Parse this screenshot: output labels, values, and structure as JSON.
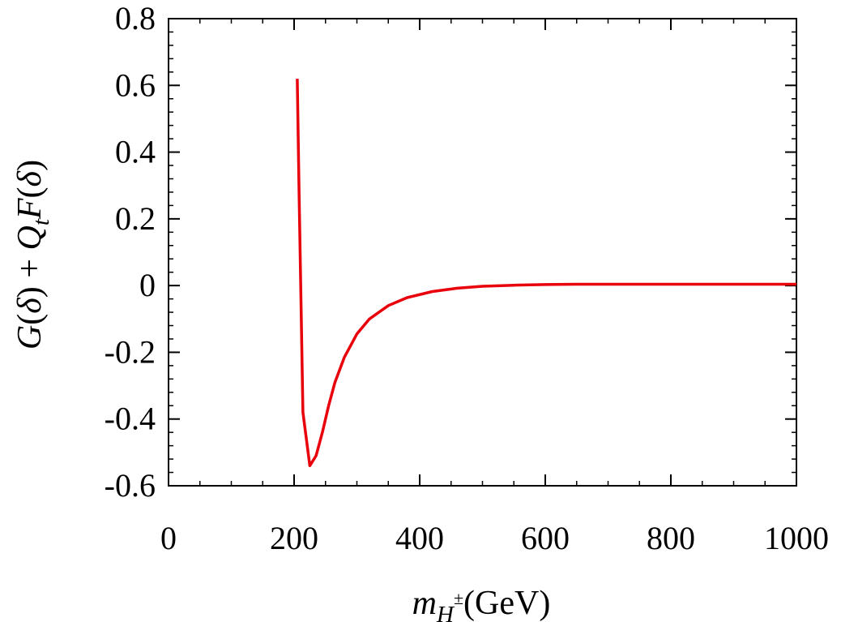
{
  "chart_data": {
    "type": "line",
    "title": "",
    "xlabel": {
      "symbol": "m",
      "subscript": "H",
      "superscript": "±",
      "unit": "(GeV)"
    },
    "ylabel": {
      "parts": [
        {
          "text": "G",
          "italic": true
        },
        {
          "text": "(",
          "italic": false
        },
        {
          "text": "δ",
          "italic": true
        },
        {
          "text": ") + ",
          "italic": false
        },
        {
          "text": "Q",
          "italic": true
        },
        {
          "text": "t",
          "italic": true,
          "sub": true
        },
        {
          "text": "F",
          "italic": true
        },
        {
          "text": "(",
          "italic": false
        },
        {
          "text": "δ",
          "italic": true
        },
        {
          "text": ")",
          "italic": false
        }
      ]
    },
    "xlim": [
      0,
      1000
    ],
    "ylim": [
      -0.6,
      0.8
    ],
    "xticks": [
      0,
      200,
      400,
      600,
      800,
      1000
    ],
    "xtick_labels": [
      "0",
      "200",
      "400",
      "600",
      "800",
      "1000"
    ],
    "yticks": [
      -0.6,
      -0.4,
      -0.2,
      0,
      0.2,
      0.4,
      0.6,
      0.8
    ],
    "ytick_labels": [
      "-0.6",
      "-0.4",
      "-0.2",
      "0",
      "0.2",
      "0.4",
      "0.6",
      "0.8"
    ],
    "x_minor_step": 50,
    "y_minor_step": 0.04,
    "grid": false,
    "legend": "none",
    "series": [
      {
        "color": "#e8000b",
        "x": [
          205,
          208,
          214,
          225,
          235,
          245,
          255,
          265,
          280,
          300,
          320,
          350,
          380,
          420,
          460,
          500,
          550,
          600,
          650,
          700,
          800,
          900,
          1000
        ],
        "y": [
          0.62,
          0.27,
          -0.38,
          -0.54,
          -0.51,
          -0.44,
          -0.36,
          -0.29,
          -0.215,
          -0.145,
          -0.1,
          -0.06,
          -0.036,
          -0.018,
          -0.008,
          -0.002,
          0.001,
          0.003,
          0.004,
          0.004,
          0.004,
          0.004,
          0.004
        ]
      }
    ]
  }
}
